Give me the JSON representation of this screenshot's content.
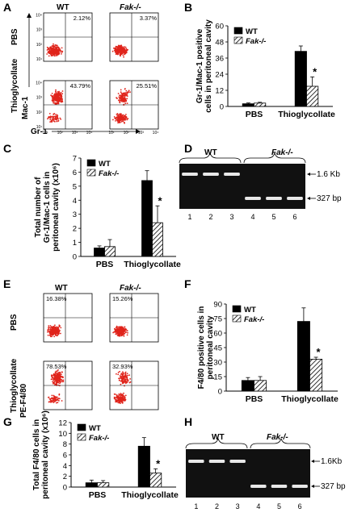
{
  "panel_letters": [
    "A",
    "B",
    "C",
    "D",
    "E",
    "F",
    "G",
    "H"
  ],
  "flow_A": {
    "col_headers": [
      "WT",
      "Fak-/-"
    ],
    "row_labels": [
      "PBS",
      "Thioglycollate"
    ],
    "y_axis": "Mac-1",
    "x_axis": "Gr-1",
    "percents": [
      "2.12%",
      "3.37%",
      "43.79%",
      "25.51%"
    ],
    "ticks": [
      "10¹",
      "10²",
      "10³",
      "10⁴"
    ]
  },
  "flow_E": {
    "col_headers": [
      "WT",
      "Fak-/-"
    ],
    "row_labels": [
      "PBS",
      "Thioglycollate"
    ],
    "y_axis": "PE-F4/80",
    "percents": [
      "16.38%",
      "15.26%",
      "78.53%",
      "32.93%"
    ]
  },
  "gel_D": {
    "group_labels": [
      "WT",
      "Fak-/-"
    ],
    "lanes": [
      "1",
      "2",
      "3",
      "4",
      "5",
      "6"
    ],
    "bands": [
      "1.6 Kb",
      "327 bp"
    ]
  },
  "gel_H": {
    "group_labels": [
      "WT",
      "Fak-/-"
    ],
    "lanes": [
      "1",
      "2",
      "3",
      "4",
      "5",
      "6"
    ],
    "bands": [
      "1.6Kb",
      "327 bp"
    ]
  },
  "colors": {
    "wt": "#000000",
    "ko_hatch": "#000000",
    "gel_bg": "#111111",
    "band": "#e8e8e8",
    "dots": "#e0241b"
  },
  "chart_data": [
    {
      "id": "B",
      "type": "bar",
      "categories": [
        "PBS",
        "Thioglycollate"
      ],
      "series": [
        {
          "name": "WT",
          "values": [
            2,
            41
          ],
          "errors": [
            0.6,
            4
          ]
        },
        {
          "name": "Fak-/-",
          "values": [
            2.5,
            15
          ],
          "errors": [
            0.6,
            7
          ]
        }
      ],
      "ylabel": "Gr-1/Mac-1 positive\ncells in peritoneal cavity",
      "ylim": [
        0,
        60
      ],
      "yticks": [
        "0",
        "12",
        "24",
        "36",
        "48",
        "60"
      ],
      "annotations": [
        "*"
      ],
      "legend": "top-left"
    },
    {
      "id": "C",
      "type": "bar",
      "categories": [
        "PBS",
        "Thioglycollate"
      ],
      "series": [
        {
          "name": "WT",
          "values": [
            0.6,
            5.4
          ],
          "errors": [
            0.15,
            0.7
          ]
        },
        {
          "name": "Fak-/-",
          "values": [
            0.7,
            2.4
          ],
          "errors": [
            0.5,
            1.2
          ]
        }
      ],
      "ylabel": "Total number of\nGr-1/Mac-1 cells in\nperitoneal cavity (x10⁶)",
      "ylim": [
        0,
        7
      ],
      "yticks": [
        "0",
        "1",
        "2",
        "3",
        "4",
        "5",
        "6",
        "7"
      ],
      "annotations": [
        "*"
      ],
      "legend": "top-left"
    },
    {
      "id": "F",
      "type": "bar",
      "categories": [
        "PBS",
        "Thioglycollate"
      ],
      "series": [
        {
          "name": "WT",
          "values": [
            11,
            72
          ],
          "errors": [
            3,
            14
          ]
        },
        {
          "name": "Fak-/-",
          "values": [
            11,
            33
          ],
          "errors": [
            4,
            2
          ]
        }
      ],
      "ylabel": "F4/80 positive cells in\nperitoneal cavity",
      "ylim": [
        0,
        90
      ],
      "yticks": [
        "0",
        "15",
        "30",
        "45",
        "60",
        "75",
        "90"
      ],
      "annotations": [
        "*"
      ],
      "legend": "top-left"
    },
    {
      "id": "G",
      "type": "bar",
      "categories": [
        "PBS",
        "Thioglycollate"
      ],
      "series": [
        {
          "name": "WT",
          "values": [
            0.8,
            7.6
          ],
          "errors": [
            0.5,
            1.6
          ]
        },
        {
          "name": "Fak-/-",
          "values": [
            0.8,
            2.6
          ],
          "errors": [
            0.4,
            0.8
          ]
        }
      ],
      "ylabel": "Total F4/80 cells in\nperitoneal cavity (x10⁶)",
      "ylim": [
        0,
        12
      ],
      "yticks": [
        "0",
        "2",
        "4",
        "6",
        "8",
        "10",
        "12"
      ],
      "annotations": [
        "*"
      ],
      "legend": "top-left"
    }
  ]
}
